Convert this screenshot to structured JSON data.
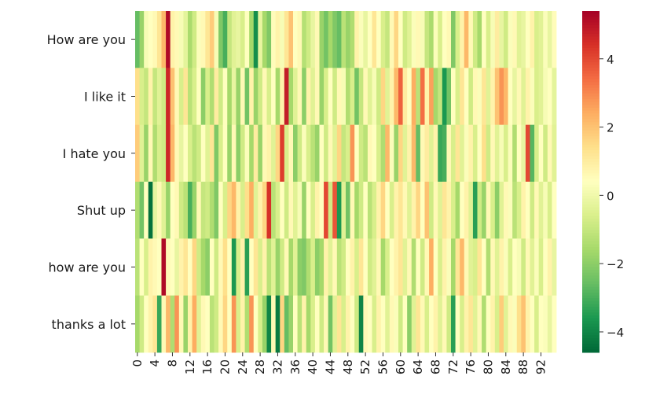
{
  "chart_data": {
    "type": "heatmap",
    "rows": [
      "How are you",
      "I like it",
      "I hate you",
      "Shut up",
      "how are you",
      "thanks a lot"
    ],
    "n_columns": 96,
    "x_tick_labels": [
      "0",
      "4",
      "8",
      "12",
      "16",
      "20",
      "24",
      "28",
      "32",
      "36",
      "40",
      "44",
      "48",
      "52",
      "56",
      "60",
      "64",
      "68",
      "72",
      "76",
      "80",
      "84",
      "88",
      "92"
    ],
    "x_tick_step": 4,
    "colorbar": {
      "range": [
        -4.6,
        5.4
      ],
      "ticks": [
        -4,
        -2,
        0,
        2,
        4
      ],
      "tick_labels": [
        "−4",
        "−2",
        "0",
        "2",
        "4"
      ],
      "colormap": "RdYlGn_r"
    },
    "values": [
      [
        -2.6,
        -1.8,
        0.2,
        0.4,
        0.6,
        1.2,
        2.2,
        5.2,
        0.8,
        0.6,
        0.2,
        -0.3,
        -1.5,
        -0.8,
        0.3,
        0.6,
        1.2,
        1.8,
        0.2,
        -2.2,
        -3.0,
        -1.0,
        -0.4,
        -0.2,
        -0.6,
        0.4,
        -1.6,
        -3.8,
        -0.2,
        -1.6,
        -2.2,
        0.5,
        0.8,
        0.2,
        1.2,
        2.0,
        0.4,
        0.6,
        -1.3,
        -0.8,
        -0.2,
        0.6,
        -1.8,
        -2.4,
        -1.6,
        -2.2,
        -2.6,
        -1.2,
        -1.8,
        -1.4,
        0.8,
        0.3,
        -0.2,
        0.4,
        1.2,
        0.4,
        -0.6,
        -1.0,
        0.6,
        1.6,
        0.4,
        -0.8,
        -0.4,
        0.3,
        0.6,
        0.2,
        -1.0,
        -1.5,
        0.3,
        -0.6,
        0.4,
        0.6,
        -2.2,
        -0.6,
        0.8,
        2.2,
        0.6,
        -0.8,
        -1.6,
        0.4,
        -0.6,
        0.2,
        1.0,
        -0.2,
        -0.8,
        0.3,
        0.6,
        -0.4,
        -0.2,
        0.4,
        0.8,
        -0.6,
        -0.4,
        0.3,
        -0.2,
        0.5
      ],
      [
        1.4,
        -0.6,
        -1.0,
        0.8,
        -1.0,
        -0.4,
        -0.8,
        4.6,
        2.0,
        0.6,
        -0.6,
        1.2,
        -1.2,
        -0.6,
        0.4,
        -2.0,
        -0.6,
        -1.4,
        1.0,
        -0.8,
        0.4,
        -1.6,
        -0.2,
        -1.8,
        0.6,
        -2.4,
        0.8,
        -1.8,
        -0.8,
        0.6,
        -0.6,
        0.4,
        -1.6,
        0.8,
        4.8,
        -1.6,
        -0.4,
        0.6,
        -2.0,
        0.8,
        -0.4,
        0.6,
        -1.8,
        -0.6,
        0.4,
        -0.8,
        0.6,
        0.2,
        -1.4,
        -0.6,
        -2.4,
        -1.0,
        0.6,
        -0.4,
        0.2,
        -0.8,
        1.6,
        -0.4,
        0.8,
        2.2,
        3.6,
        1.0,
        0.4,
        2.4,
        -1.2,
        3.4,
        0.8,
        2.6,
        -1.6,
        -1.0,
        -3.6,
        -2.4,
        0.4,
        -0.6,
        1.2,
        0.4,
        -0.8,
        0.6,
        0.3,
        1.2,
        -0.4,
        0.8,
        2.0,
        2.8,
        2.2,
        0.4,
        -0.2,
        0.6,
        -0.4,
        0.8,
        0.3,
        -0.6,
        -0.4,
        0.2,
        0.4,
        -0.3
      ],
      [
        1.8,
        -0.4,
        -1.8,
        0.6,
        -1.4,
        -0.6,
        -0.8,
        4.6,
        2.2,
        0.6,
        -0.2,
        0.4,
        -0.6,
        -1.2,
        -0.8,
        0.4,
        -0.4,
        1.2,
        -2.2,
        -0.6,
        0.4,
        -1.8,
        0.6,
        -2.0,
        -0.8,
        0.3,
        -1.6,
        1.0,
        -1.8,
        0.6,
        0.8,
        -0.4,
        1.6,
        4.2,
        -0.6,
        0.6,
        -2.0,
        -0.8,
        0.3,
        -0.6,
        -1.2,
        -1.8,
        0.4,
        -0.8,
        0.6,
        -0.4,
        1.6,
        -1.0,
        -0.6,
        2.8,
        0.4,
        -0.8,
        -1.2,
        0.6,
        0.4,
        -0.6,
        -1.4,
        2.2,
        0.3,
        -1.8,
        1.6,
        -0.4,
        0.8,
        2.2,
        -2.6,
        0.6,
        1.0,
        -0.4,
        0.8,
        -3.2,
        -3.0,
        0.6,
        -0.6,
        1.2,
        -0.4,
        0.3,
        0.8,
        -0.6,
        0.4,
        1.4,
        -0.8,
        0.6,
        -0.4,
        0.2,
        -0.6,
        0.3,
        -1.4,
        0.4,
        -0.2,
        4.0,
        -2.8,
        -0.6,
        0.4,
        -0.8,
        0.6,
        -0.4
      ],
      [
        -1.4,
        -2.4,
        0.4,
        -4.4,
        -0.2,
        0.6,
        -0.4,
        -1.8,
        0.4,
        0.6,
        -0.8,
        -1.2,
        -3.0,
        -1.8,
        0.6,
        -1.0,
        -0.8,
        -1.4,
        -2.2,
        0.4,
        -0.6,
        1.6,
        2.2,
        0.8,
        -0.6,
        1.4,
        2.4,
        -0.4,
        0.8,
        1.6,
        4.4,
        -1.2,
        -0.6,
        0.4,
        -0.8,
        0.6,
        -0.4,
        0.2,
        -1.8,
        0.4,
        -0.6,
        0.8,
        0.4,
        4.0,
        -0.8,
        3.8,
        -3.6,
        -0.4,
        -2.4,
        0.6,
        -1.6,
        -0.8,
        0.4,
        -1.2,
        -0.6,
        0.8,
        1.6,
        0.4,
        -0.6,
        0.8,
        1.2,
        0.6,
        -0.4,
        0.8,
        1.6,
        0.4,
        2.0,
        -0.8,
        0.6,
        -0.4,
        1.2,
        0.8,
        -0.6,
        -1.6,
        0.4,
        0.8,
        -0.4,
        -3.4,
        -0.8,
        -1.8,
        0.6,
        -0.6,
        -2.0,
        -0.4,
        0.6,
        0.3,
        -1.2,
        -0.6,
        0.8,
        0.4,
        -0.8,
        0.6,
        -0.4,
        0.2,
        -0.6,
        0.4
      ],
      [
        -1.2,
        0.4,
        -0.6,
        0.8,
        0.6,
        0.4,
        5.2,
        0.6,
        0.4,
        -0.2,
        0.8,
        1.2,
        0.4,
        1.6,
        -0.8,
        -1.6,
        -2.0,
        0.4,
        -0.8,
        0.6,
        1.4,
        0.4,
        -3.6,
        -0.6,
        0.8,
        -3.4,
        0.4,
        1.2,
        -0.6,
        0.8,
        -1.2,
        -0.4,
        -1.8,
        -0.8,
        0.6,
        -1.6,
        -0.4,
        -2.0,
        -2.2,
        -1.4,
        -0.6,
        -2.0,
        -1.6,
        0.8,
        -0.4,
        0.6,
        -1.2,
        -0.8,
        0.4,
        0.8,
        -0.6,
        1.2,
        0.4,
        -0.8,
        -0.4,
        0.6,
        -1.6,
        -0.6,
        0.4,
        0.8,
        1.2,
        -0.4,
        0.6,
        -1.4,
        0.4,
        -0.8,
        0.6,
        2.4,
        0.4,
        -0.6,
        0.8,
        0.3,
        -1.6,
        1.2,
        2.2,
        0.6,
        -0.4,
        -0.6,
        1.2,
        0.4,
        -1.4,
        0.6,
        -0.4,
        0.8,
        0.3,
        -0.6,
        0.4,
        0.2,
        -0.8,
        0.6,
        -0.4,
        0.3,
        -0.6,
        0.4,
        0.8,
        -0.2
      ],
      [
        -1.6,
        -0.8,
        0.4,
        0.8,
        1.2,
        -3.2,
        0.6,
        2.2,
        -1.4,
        2.8,
        0.6,
        -1.8,
        0.8,
        2.4,
        -0.4,
        0.6,
        0.4,
        -1.2,
        -0.8,
        0.6,
        1.6,
        0.4,
        2.8,
        -0.6,
        0.8,
        -1.4,
        2.8,
        0.4,
        -0.6,
        -1.8,
        -4.0,
        0.6,
        -4.2,
        1.6,
        -2.6,
        -1.8,
        0.4,
        -1.2,
        0.8,
        -1.6,
        -0.6,
        0.4,
        -0.8,
        0.6,
        -2.4,
        -0.4,
        1.2,
        -0.6,
        0.8,
        0.4,
        -0.8,
        -4.0,
        0.6,
        0.4,
        -0.6,
        0.8,
        0.4,
        -0.4,
        0.6,
        0.3,
        -0.8,
        0.4,
        -2.0,
        -0.4,
        1.2,
        0.6,
        -0.6,
        0.4,
        0.8,
        -0.4,
        0.6,
        -0.8,
        -3.4,
        0.4,
        -0.6,
        0.8,
        1.2,
        -0.4,
        0.6,
        -1.4,
        0.4,
        0.8,
        -0.6,
        1.8,
        -0.4,
        0.6,
        0.3,
        1.4,
        2.0,
        0.8,
        0.4,
        -0.6,
        0.4,
        0.3,
        -0.2,
        0.4
      ]
    ]
  }
}
